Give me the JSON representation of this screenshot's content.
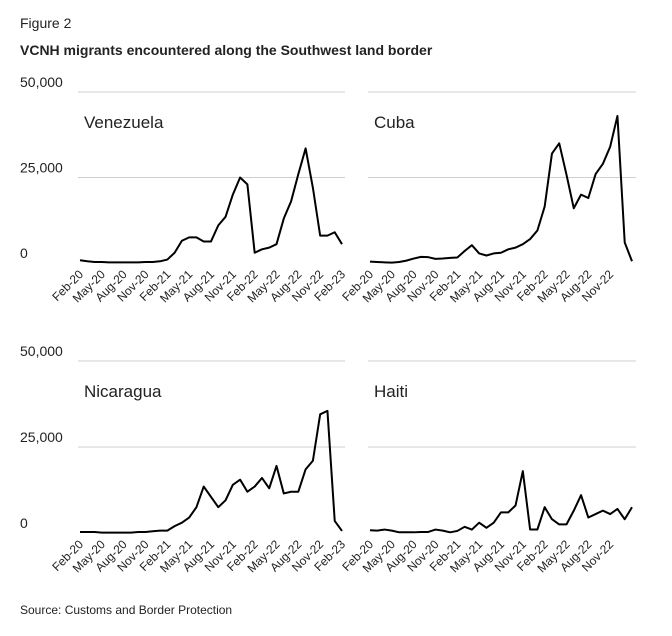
{
  "figure_label": "Figure 2",
  "title": "VCNH migrants encountered along the Southwest land border",
  "source": "Source: Customs and Border Protection",
  "chart_data": [
    {
      "type": "line",
      "name": "Venezuela",
      "color": "#000000",
      "grid": true,
      "categories": [
        "Feb-20",
        null,
        null,
        "May-20",
        null,
        null,
        "Aug-20",
        null,
        null,
        "Nov-20",
        null,
        null,
        "Feb-21",
        null,
        null,
        "May-21",
        null,
        null,
        "Aug-21",
        null,
        null,
        "Nov-21",
        null,
        null,
        "Feb-22",
        null,
        null,
        "May-22",
        null,
        null,
        "Aug-22",
        null,
        null,
        "Nov-22",
        null,
        null,
        "Feb-23"
      ],
      "values": [
        800,
        500,
        300,
        300,
        200,
        200,
        200,
        200,
        200,
        300,
        300,
        500,
        1000,
        3000,
        6500,
        7500,
        7500,
        6300,
        6300,
        11000,
        13500,
        20000,
        25000,
        23000,
        3000,
        4000,
        4500,
        5500,
        13000,
        18000,
        26000,
        33500,
        22000,
        8000,
        8000,
        9000,
        5500
      ],
      "ylim": [
        0,
        50000
      ],
      "yticks": [
        {
          "value": 0,
          "label": "0"
        },
        {
          "value": 25000,
          "label": "25,000"
        },
        {
          "value": 50000,
          "label": "50,000"
        }
      ]
    },
    {
      "type": "line",
      "name": "Cuba",
      "color": "#000000",
      "grid": true,
      "categories": [
        "Feb-20",
        null,
        null,
        "May-20",
        null,
        null,
        "Aug-20",
        null,
        null,
        "Nov-20",
        null,
        null,
        "Feb-21",
        null,
        null,
        "May-21",
        null,
        null,
        "Aug-21",
        null,
        null,
        "Nov-21",
        null,
        null,
        "Feb-22",
        null,
        null,
        "May-22",
        null,
        null,
        "Aug-22",
        null,
        null,
        "Nov-22",
        null,
        null,
        null
      ],
      "values": [
        400,
        300,
        200,
        100,
        300,
        700,
        1300,
        1800,
        1700,
        1200,
        1300,
        1500,
        1600,
        3500,
        5200,
        2800,
        2200,
        2800,
        3000,
        4000,
        4500,
        5500,
        7000,
        9500,
        16500,
        32000,
        35000,
        25800,
        16000,
        20000,
        19000,
        26000,
        29000,
        34000,
        43000,
        6000,
        500
      ],
      "ylim": [
        0,
        50000
      ],
      "yticks": [
        0,
        25000,
        50000
      ]
    },
    {
      "type": "line",
      "name": "Nicaragua",
      "color": "#000000",
      "grid": true,
      "categories": [
        "Feb-20",
        null,
        null,
        "May-20",
        null,
        null,
        "Aug-20",
        null,
        null,
        "Nov-20",
        null,
        null,
        "Feb-21",
        null,
        null,
        "May-21",
        null,
        null,
        "Aug-21",
        null,
        null,
        "Nov-21",
        null,
        null,
        "Feb-22",
        null,
        null,
        "May-22",
        null,
        null,
        "Aug-22",
        null,
        null,
        "Nov-22",
        null,
        null,
        "Feb-23"
      ],
      "values": [
        300,
        300,
        300,
        100,
        100,
        100,
        100,
        100,
        300,
        300,
        500,
        700,
        700,
        2000,
        3000,
        4500,
        7500,
        13500,
        10500,
        7500,
        9500,
        14000,
        15500,
        12000,
        13500,
        16000,
        13000,
        19500,
        11500,
        12000,
        12000,
        18500,
        21000,
        34500,
        35500,
        3500,
        600
      ],
      "ylim": [
        0,
        50000
      ],
      "yticks": [
        {
          "value": 0,
          "label": "0"
        },
        {
          "value": 25000,
          "label": "25,000"
        },
        {
          "value": 50000,
          "label": "50,000"
        }
      ]
    },
    {
      "type": "line",
      "name": "Haiti",
      "color": "#000000",
      "grid": true,
      "categories": [
        "Feb-20",
        null,
        null,
        "May-20",
        null,
        null,
        "Aug-20",
        null,
        null,
        "Nov-20",
        null,
        null,
        "Feb-21",
        null,
        null,
        "May-21",
        null,
        null,
        "Aug-21",
        null,
        null,
        "Nov-21",
        null,
        null,
        "Feb-22",
        null,
        null,
        "May-22",
        null,
        null,
        "Aug-22",
        null,
        null,
        "Nov-22",
        null,
        null,
        null
      ],
      "values": [
        800,
        700,
        1000,
        700,
        200,
        200,
        200,
        300,
        300,
        1000,
        700,
        200,
        600,
        1800,
        1000,
        3000,
        1500,
        3000,
        6000,
        6000,
        8000,
        18000,
        1000,
        1000,
        7500,
        4000,
        2500,
        2500,
        6500,
        11000,
        4500,
        5500,
        6500,
        5500,
        7000,
        4000,
        7500
      ],
      "ylim": [
        0,
        50000
      ],
      "yticks": [
        0,
        25000,
        50000
      ]
    }
  ]
}
